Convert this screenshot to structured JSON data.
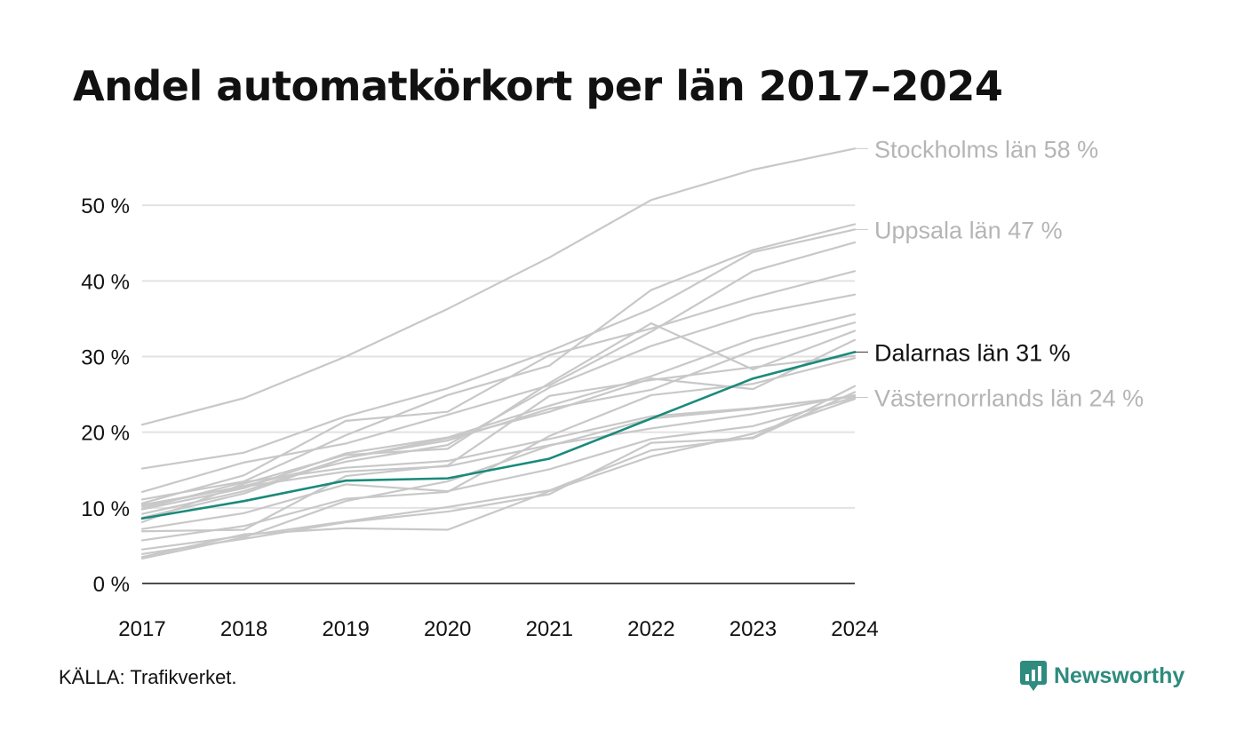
{
  "colors": {
    "highlight": "#1a8a7a",
    "muted": "#c8c8c8",
    "grid": "#e2e2e2",
    "axis": "#111111",
    "brand": "#2e8b7e"
  },
  "chart_data": {
    "type": "line",
    "title": "Andel automatkörkort per län 2017–2024",
    "xlabel": "",
    "ylabel": "",
    "x": [
      "2017",
      "2018",
      "2019",
      "2020",
      "2021",
      "2022",
      "2023",
      "2024"
    ],
    "ylim": [
      0,
      60
    ],
    "yticks": [
      0,
      10,
      20,
      30,
      40,
      50
    ],
    "ytick_labels": [
      "0 %",
      "10 %",
      "20 %",
      "30 %",
      "40 %",
      "50 %"
    ],
    "grid": true,
    "series": [
      {
        "name": "Stockholms län",
        "values": [
          21,
          24.5,
          30,
          36.3,
          43.1,
          50.7,
          54.7,
          57.5
        ],
        "label": "Stockholms län 58 %",
        "style": "muted"
      },
      {
        "name": "Uppsala län",
        "values": [
          15.2,
          17.3,
          22.1,
          25.8,
          30.7,
          36.3,
          43.8,
          46.8
        ],
        "label": "Uppsala län 47 %",
        "style": "muted"
      },
      {
        "name": "Dalarnas län",
        "values": [
          8.6,
          10.9,
          13.6,
          13.9,
          16.5,
          21.8,
          27.1,
          30.6
        ],
        "label": "Dalarnas län 31 %",
        "style": "highlight"
      },
      {
        "name": "Västernorrlands län",
        "values": [
          7.2,
          9.3,
          13.1,
          12.2,
          15.1,
          19.1,
          20.8,
          24.6
        ],
        "label": "Västernorrlands län 24 %",
        "style": "muted"
      },
      {
        "values": [
          12.1,
          16,
          18.5,
          22.3,
          26.2,
          33.3,
          41.3,
          45.1
        ],
        "style": "muted"
      },
      {
        "values": [
          11.1,
          13.5,
          19.6,
          24.9,
          28.8,
          38.8,
          44.1,
          47.5
        ],
        "style": "muted"
      },
      {
        "values": [
          10.6,
          14.3,
          21.5,
          22.7,
          30.2,
          33.7,
          37.8,
          41.3
        ],
        "style": "muted"
      },
      {
        "values": [
          10.2,
          12.9,
          16.1,
          18.3,
          25.9,
          31.4,
          35.6,
          38.2
        ],
        "style": "muted"
      },
      {
        "values": [
          9.8,
          12.6,
          17.2,
          19.3,
          23.5,
          27.4,
          32.3,
          35.6
        ],
        "style": "muted"
      },
      {
        "values": [
          9.2,
          12.2,
          16.6,
          18.9,
          23.1,
          25.6,
          30.8,
          34.5
        ],
        "style": "muted"
      },
      {
        "values": [
          8.1,
          13.2,
          17,
          17.8,
          26.5,
          34.4,
          28.3,
          33.4
        ],
        "style": "muted"
      },
      {
        "values": [
          8.7,
          11.9,
          16.6,
          19.2,
          22.7,
          27.1,
          25.7,
          32.2
        ],
        "style": "muted"
      },
      {
        "values": [
          6.9,
          7.1,
          14.2,
          15.6,
          24.8,
          26.9,
          28.6,
          30.1
        ],
        "style": "muted"
      },
      {
        "values": [
          5.7,
          7.6,
          11.2,
          12.1,
          19.5,
          24.9,
          26.4,
          29.8
        ],
        "style": "muted"
      },
      {
        "values": [
          4.5,
          6.3,
          8.2,
          10.1,
          12.3,
          17.6,
          19.3,
          26.1
        ],
        "style": "muted"
      },
      {
        "values": [
          3.9,
          5.9,
          8.1,
          9.5,
          11.8,
          18.6,
          19.2,
          25.3
        ],
        "style": "muted"
      },
      {
        "values": [
          3.5,
          6.5,
          7.3,
          7.1,
          12.2,
          16.8,
          19.8,
          24.4
        ],
        "style": "muted"
      },
      {
        "values": [
          3.3,
          6.1,
          10.9,
          13.5,
          18.2,
          21.8,
          23.1,
          24.8
        ],
        "style": "muted"
      },
      {
        "values": [
          10.4,
          12.8,
          14.8,
          15.5,
          18.3,
          20.5,
          22.4,
          24.9
        ],
        "style": "muted"
      },
      {
        "values": [
          9.9,
          13.4,
          15.3,
          16.2,
          19.1,
          22.1,
          23.2,
          24.7
        ],
        "style": "muted"
      }
    ]
  },
  "footer": {
    "source": "KÄLLA: Trafikverket.",
    "brand": "Newsworthy",
    "brand_icon": "newsworthy-logo-icon"
  }
}
